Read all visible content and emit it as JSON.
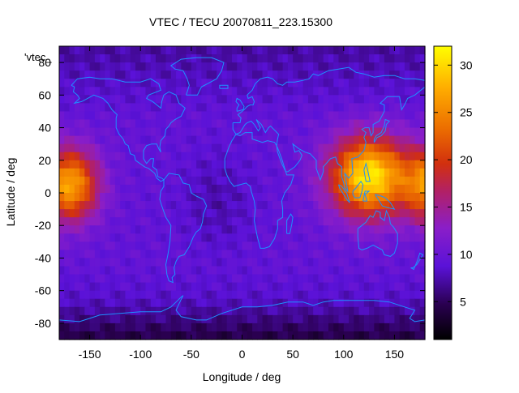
{
  "chart_data": {
    "type": "heatmap",
    "title": "VTEC / TECU 20070811_223.15300",
    "xlabel": "Longitude / deg",
    "ylabel": "Latitude / deg",
    "legend_label": "'vtec_",
    "xlim": [
      -180,
      180
    ],
    "ylim": [
      -90,
      90
    ],
    "x_ticks": [
      -150,
      -100,
      -50,
      0,
      50,
      100,
      150
    ],
    "y_ticks": [
      -80,
      -60,
      -40,
      -20,
      0,
      20,
      40,
      60,
      80
    ],
    "colorbar": {
      "range": [
        1,
        32
      ],
      "ticks": [
        5,
        10,
        15,
        20,
        25,
        30
      ],
      "palette": "black-purple-red-orange-yellow"
    },
    "field_features": [
      {
        "description": "equatorial anomaly crest east",
        "lon_center": 125,
        "lat_center": 10,
        "peak_tecu": 31
      },
      {
        "description": "equatorial anomaly crest west (dateline)",
        "lon_center": -170,
        "lat_center": 5,
        "peak_tecu": 27
      },
      {
        "description": "background mid-latitudes",
        "typical_tecu": 9
      },
      {
        "description": "southern polar region minimum",
        "lat_range": [
          -90,
          -70
        ],
        "typical_tecu": 3
      }
    ]
  },
  "colors": {
    "coastline": "#1e90ff",
    "background": "#ffffff",
    "axis": "#000000"
  }
}
